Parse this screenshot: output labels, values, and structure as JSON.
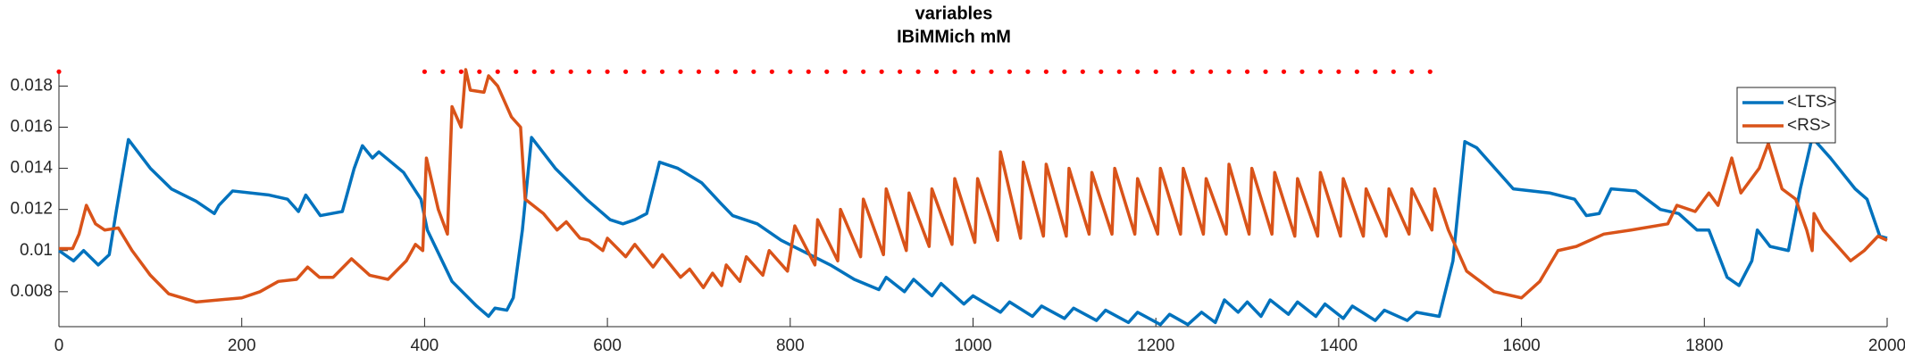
{
  "chart_data": {
    "type": "line",
    "title": "variables",
    "subtitle": "IBiMMich mM",
    "xlim": [
      0,
      2000
    ],
    "xticks": [
      0,
      200,
      400,
      600,
      800,
      1000,
      1200,
      1400,
      1600,
      1800,
      2000
    ],
    "ylim": [
      0.0063,
      0.0188
    ],
    "yticks": [
      0.008,
      0.01,
      0.012,
      0.014,
      0.016,
      0.018
    ],
    "legend": "northeast",
    "series": [
      {
        "name": "<LTS>",
        "color": "#0072BD",
        "x": [
          0,
          16,
          27,
          43,
          55,
          63,
          76,
          100,
          123,
          150,
          170,
          175,
          190,
          230,
          250,
          262,
          270,
          286,
          310,
          323,
          332,
          343,
          350,
          377,
          396,
          403,
          430,
          457,
          470,
          477,
          490,
          497,
          507,
          517,
          543,
          577,
          603,
          617,
          630,
          643,
          657,
          677,
          703,
          724,
          737,
          764,
          790,
          817,
          844,
          870,
          897,
          905,
          925,
          935,
          955,
          965,
          990,
          1000,
          1030,
          1040,
          1065,
          1075,
          1100,
          1110,
          1135,
          1145,
          1170,
          1180,
          1205,
          1215,
          1235,
          1250,
          1265,
          1275,
          1290,
          1300,
          1315,
          1325,
          1345,
          1355,
          1375,
          1385,
          1405,
          1415,
          1440,
          1450,
          1475,
          1485,
          1510,
          1525,
          1538,
          1551,
          1591,
          1631,
          1658,
          1671,
          1685,
          1698,
          1725,
          1752,
          1772,
          1792,
          1805,
          1825,
          1838,
          1852,
          1858,
          1872,
          1892,
          1905,
          1918,
          1938,
          1965,
          1978,
          1992,
          2000
        ],
        "values": [
          0.01,
          0.0095,
          0.01,
          0.0093,
          0.0098,
          0.012,
          0.0154,
          0.014,
          0.013,
          0.0124,
          0.0118,
          0.0122,
          0.0129,
          0.0127,
          0.0125,
          0.0119,
          0.0127,
          0.0117,
          0.0119,
          0.014,
          0.0151,
          0.0145,
          0.0148,
          0.0138,
          0.0125,
          0.011,
          0.0085,
          0.0073,
          0.0068,
          0.0072,
          0.0071,
          0.0077,
          0.011,
          0.0155,
          0.014,
          0.0125,
          0.0115,
          0.0113,
          0.0115,
          0.0118,
          0.0143,
          0.014,
          0.0133,
          0.0123,
          0.0117,
          0.0113,
          0.0105,
          0.0099,
          0.0093,
          0.0086,
          0.0081,
          0.0087,
          0.008,
          0.0086,
          0.0078,
          0.0084,
          0.0074,
          0.0078,
          0.007,
          0.0075,
          0.0068,
          0.0073,
          0.0067,
          0.0072,
          0.0066,
          0.0071,
          0.0065,
          0.007,
          0.0064,
          0.0069,
          0.0064,
          0.007,
          0.0065,
          0.0076,
          0.007,
          0.0075,
          0.0068,
          0.0076,
          0.0069,
          0.0075,
          0.0068,
          0.0074,
          0.0067,
          0.0073,
          0.0066,
          0.0071,
          0.0066,
          0.007,
          0.0068,
          0.0095,
          0.0153,
          0.015,
          0.013,
          0.0128,
          0.0125,
          0.0117,
          0.0118,
          0.013,
          0.0129,
          0.012,
          0.0118,
          0.011,
          0.011,
          0.0087,
          0.0083,
          0.0095,
          0.011,
          0.0102,
          0.01,
          0.013,
          0.0155,
          0.0145,
          0.013,
          0.0125,
          0.0107,
          0.0106
        ]
      },
      {
        "name": "<RS>",
        "color": "#D95319",
        "x": [
          0,
          15,
          22,
          30,
          40,
          50,
          65,
          80,
          100,
          120,
          150,
          200,
          220,
          240,
          260,
          272,
          285,
          300,
          320,
          340,
          360,
          380,
          390,
          398,
          402,
          415,
          425,
          430,
          440,
          445,
          450,
          465,
          470,
          480,
          495,
          505,
          510,
          530,
          545,
          555,
          570,
          580,
          595,
          600,
          620,
          630,
          650,
          660,
          680,
          690,
          705,
          715,
          725,
          730,
          745,
          752,
          770,
          777,
          797,
          805,
          827,
          830,
          852,
          855,
          877,
          880,
          902,
          905,
          927,
          930,
          952,
          955,
          977,
          980,
          1002,
          1005,
          1027,
          1030,
          1052,
          1055,
          1077,
          1080,
          1102,
          1105,
          1127,
          1130,
          1152,
          1155,
          1177,
          1180,
          1202,
          1205,
          1227,
          1230,
          1252,
          1255,
          1277,
          1280,
          1302,
          1305,
          1327,
          1330,
          1352,
          1355,
          1377,
          1380,
          1402,
          1405,
          1427,
          1430,
          1452,
          1455,
          1477,
          1480,
          1502,
          1505,
          1520,
          1540,
          1570,
          1600,
          1620,
          1640,
          1660,
          1690,
          1720,
          1760,
          1770,
          1790,
          1805,
          1815,
          1830,
          1840,
          1860,
          1870,
          1885,
          1900,
          1912,
          1918,
          1920,
          1930,
          1960,
          1975,
          1990,
          2000
        ],
        "values": [
          0.0101,
          0.0101,
          0.0108,
          0.0122,
          0.0113,
          0.011,
          0.0111,
          0.01,
          0.0088,
          0.0079,
          0.0075,
          0.0077,
          0.008,
          0.0085,
          0.0086,
          0.0092,
          0.0087,
          0.0087,
          0.0096,
          0.0088,
          0.0086,
          0.0095,
          0.0103,
          0.01,
          0.0145,
          0.012,
          0.0108,
          0.017,
          0.016,
          0.0188,
          0.0178,
          0.0177,
          0.0185,
          0.018,
          0.0165,
          0.016,
          0.0125,
          0.0118,
          0.011,
          0.0114,
          0.0106,
          0.0105,
          0.01,
          0.0106,
          0.0097,
          0.0103,
          0.0092,
          0.0098,
          0.0087,
          0.0091,
          0.0082,
          0.0089,
          0.0083,
          0.0093,
          0.0085,
          0.0097,
          0.0088,
          0.01,
          0.009,
          0.0112,
          0.0093,
          0.0115,
          0.0095,
          0.012,
          0.0097,
          0.0125,
          0.0098,
          0.013,
          0.01,
          0.0128,
          0.0102,
          0.013,
          0.0103,
          0.0135,
          0.0104,
          0.0135,
          0.0105,
          0.0148,
          0.0106,
          0.0143,
          0.0107,
          0.0142,
          0.0107,
          0.014,
          0.0108,
          0.0138,
          0.0108,
          0.014,
          0.0108,
          0.0135,
          0.0108,
          0.014,
          0.0108,
          0.014,
          0.0108,
          0.0135,
          0.0108,
          0.0142,
          0.0108,
          0.014,
          0.0108,
          0.0138,
          0.0107,
          0.0135,
          0.0107,
          0.0138,
          0.0107,
          0.0135,
          0.0107,
          0.013,
          0.0107,
          0.013,
          0.0108,
          0.013,
          0.011,
          0.013,
          0.011,
          0.009,
          0.008,
          0.0077,
          0.0085,
          0.01,
          0.0102,
          0.0108,
          0.011,
          0.0113,
          0.0122,
          0.0119,
          0.0128,
          0.0122,
          0.0145,
          0.0128,
          0.014,
          0.0152,
          0.013,
          0.0125,
          0.011,
          0.01,
          0.0118,
          0.011,
          0.0095,
          0.01,
          0.0107,
          0.0105
        ]
      }
    ],
    "markers": {
      "color": "#FF0000",
      "y": 0.0187,
      "x": [
        0,
        400,
        420,
        440,
        460,
        480,
        500,
        520,
        540,
        560,
        580,
        600,
        620,
        640,
        660,
        680,
        700,
        720,
        740,
        760,
        780,
        800,
        820,
        840,
        860,
        880,
        900,
        920,
        940,
        960,
        980,
        1000,
        1020,
        1040,
        1060,
        1080,
        1100,
        1120,
        1140,
        1160,
        1180,
        1200,
        1220,
        1240,
        1260,
        1280,
        1300,
        1320,
        1340,
        1360,
        1380,
        1400,
        1420,
        1440,
        1460,
        1480,
        1500
      ]
    }
  }
}
